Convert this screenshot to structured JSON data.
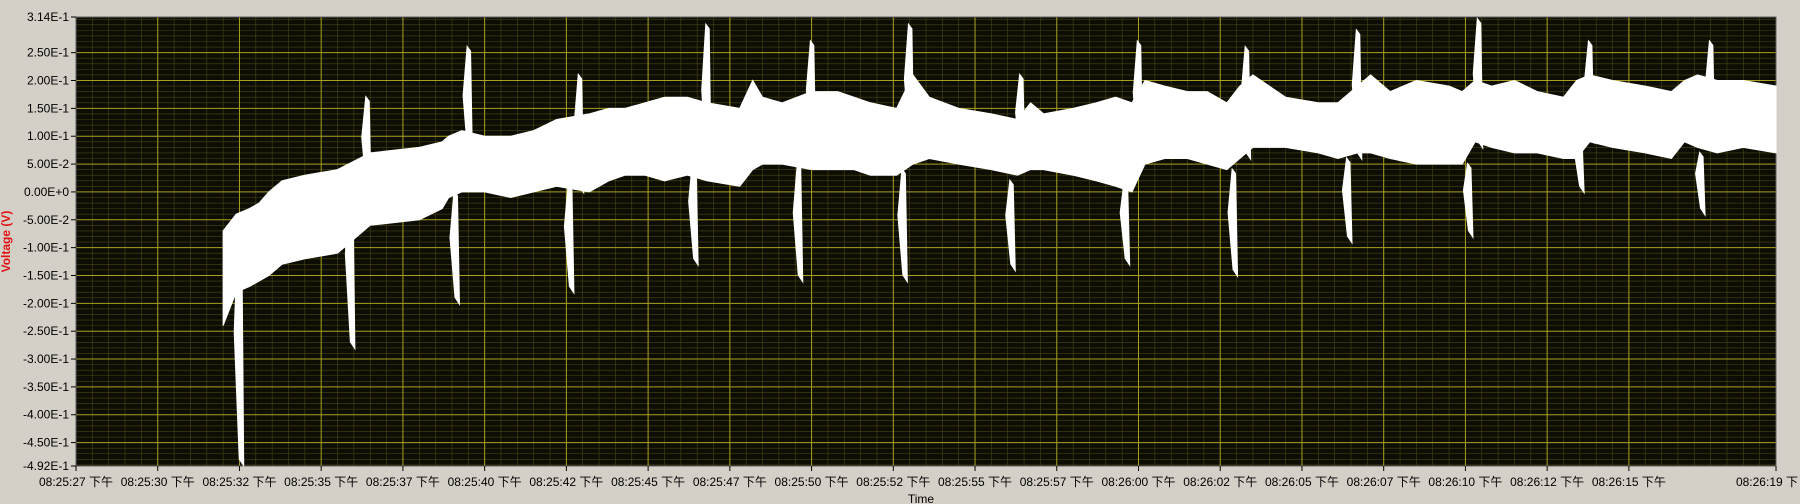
{
  "chart_data": {
    "type": "area",
    "title": "",
    "xlabel": "Time",
    "ylabel": "Voltage (V)",
    "ylim": [
      -0.492,
      0.314
    ],
    "yticks": [
      {
        "value": 0.314,
        "label": "3.14E-1"
      },
      {
        "value": 0.25,
        "label": "2.50E-1"
      },
      {
        "value": 0.2,
        "label": "2.00E-1"
      },
      {
        "value": 0.15,
        "label": "1.50E-1"
      },
      {
        "value": 0.1,
        "label": "1.00E-1"
      },
      {
        "value": 0.05,
        "label": "5.00E-2"
      },
      {
        "value": 0.0,
        "label": "0.00E+0"
      },
      {
        "value": -0.05,
        "label": "-5.00E-2"
      },
      {
        "value": -0.1,
        "label": "-1.00E-1"
      },
      {
        "value": -0.15,
        "label": "-1.50E-1"
      },
      {
        "value": -0.2,
        "label": "-2.00E-1"
      },
      {
        "value": -0.25,
        "label": "-2.50E-1"
      },
      {
        "value": -0.3,
        "label": "-3.00E-1"
      },
      {
        "value": -0.35,
        "label": "-3.50E-1"
      },
      {
        "value": -0.4,
        "label": "-4.00E-1"
      },
      {
        "value": -0.45,
        "label": "-4.50E-1"
      },
      {
        "value": -0.492,
        "label": "-4.92E-1"
      }
    ],
    "xlim": [
      0,
      52
    ],
    "xticks": [
      {
        "value": 0,
        "label": "08:25:27 下午"
      },
      {
        "value": 2.5,
        "label": "08:25:30 下午"
      },
      {
        "value": 5,
        "label": "08:25:32 下午"
      },
      {
        "value": 7.5,
        "label": "08:25:35 下午"
      },
      {
        "value": 10,
        "label": "08:25:37 下午"
      },
      {
        "value": 12.5,
        "label": "08:25:40 下午"
      },
      {
        "value": 15,
        "label": "08:25:42 下午"
      },
      {
        "value": 17.5,
        "label": "08:25:45 下午"
      },
      {
        "value": 20,
        "label": "08:25:47 下午"
      },
      {
        "value": 22.5,
        "label": "08:25:50 下午"
      },
      {
        "value": 25,
        "label": "08:25:52 下午"
      },
      {
        "value": 27.5,
        "label": "08:25:55 下午"
      },
      {
        "value": 30,
        "label": "08:25:57 下午"
      },
      {
        "value": 32.5,
        "label": "08:26:00 下午"
      },
      {
        "value": 35,
        "label": "08:26:02 下午"
      },
      {
        "value": 37.5,
        "label": "08:26:05 下午"
      },
      {
        "value": 40,
        "label": "08:26:07 下午"
      },
      {
        "value": 42.5,
        "label": "08:26:10 下午"
      },
      {
        "value": 45,
        "label": "08:26:12 下午"
      },
      {
        "value": 47.5,
        "label": "08:26:15 下午"
      },
      {
        "value": 52,
        "label": "08:26:19 下"
      }
    ],
    "grid": true,
    "colors": {
      "plot_bg": "#0d0d04",
      "major_grid": "#a8a020",
      "minor_grid": "#4a4614",
      "trace": "#ffffff",
      "frame_bg": "#d4d0c8",
      "ylabel_color": "#e01010"
    },
    "series": [
      {
        "band_x": [
          4.5,
          4.9,
          5.3,
          5.6,
          5.9,
          6.3,
          7,
          8,
          9,
          10.5,
          11.2,
          11.4,
          11.8,
          12.5,
          13.3,
          14,
          14.7,
          15.7,
          16.3,
          16.8,
          17.4,
          18,
          18.7,
          19.3,
          20.3,
          20.7,
          21,
          21.6,
          22.5,
          23.3,
          23.8,
          24.3,
          25.1,
          25.6,
          26.1,
          27,
          28,
          28.8,
          29.2,
          29.6,
          30.5,
          31.2,
          31.8,
          32.3,
          32.7,
          33.3,
          34,
          34.6,
          35.2,
          35.6,
          36,
          37,
          38,
          38.6,
          39.2,
          39.6,
          40.2,
          41,
          42,
          42.4,
          42.8,
          43.3,
          44,
          44.7,
          45.5,
          45.9,
          46.3,
          47,
          48,
          48.8,
          49.2,
          49.6,
          50.2,
          51,
          52
        ],
        "band_high": [
          -0.07,
          -0.04,
          -0.03,
          -0.02,
          0.0,
          0.02,
          0.03,
          0.04,
          0.07,
          0.08,
          0.09,
          0.1,
          0.11,
          0.1,
          0.1,
          0.11,
          0.13,
          0.14,
          0.15,
          0.15,
          0.16,
          0.17,
          0.17,
          0.16,
          0.15,
          0.2,
          0.17,
          0.16,
          0.18,
          0.18,
          0.17,
          0.16,
          0.15,
          0.21,
          0.17,
          0.15,
          0.14,
          0.13,
          0.16,
          0.14,
          0.15,
          0.16,
          0.17,
          0.16,
          0.2,
          0.19,
          0.18,
          0.18,
          0.16,
          0.19,
          0.21,
          0.17,
          0.16,
          0.16,
          0.19,
          0.21,
          0.18,
          0.2,
          0.19,
          0.18,
          0.2,
          0.19,
          0.2,
          0.18,
          0.17,
          0.2,
          0.21,
          0.2,
          0.19,
          0.18,
          0.2,
          0.21,
          0.2,
          0.2,
          0.19
        ],
        "band_low": [
          -0.24,
          -0.18,
          -0.17,
          -0.16,
          -0.15,
          -0.13,
          -0.12,
          -0.11,
          -0.06,
          -0.05,
          -0.03,
          -0.01,
          0.0,
          0.0,
          -0.01,
          0.0,
          0.01,
          0.0,
          0.02,
          0.03,
          0.03,
          0.02,
          0.03,
          0.02,
          0.01,
          0.04,
          0.05,
          0.05,
          0.04,
          0.04,
          0.04,
          0.03,
          0.03,
          0.05,
          0.06,
          0.05,
          0.04,
          0.03,
          0.04,
          0.04,
          0.03,
          0.02,
          0.01,
          0.0,
          0.05,
          0.06,
          0.06,
          0.05,
          0.04,
          0.06,
          0.08,
          0.08,
          0.07,
          0.06,
          0.07,
          0.07,
          0.06,
          0.05,
          0.05,
          0.05,
          0.09,
          0.08,
          0.07,
          0.07,
          0.06,
          0.06,
          0.09,
          0.08,
          0.07,
          0.06,
          0.09,
          0.08,
          0.07,
          0.08,
          0.07
        ],
        "spikes": [
          {
            "x": 5.0,
            "low": -0.49,
            "high": -0.05
          },
          {
            "x": 8.4,
            "low": -0.28,
            "high": 0.02
          },
          {
            "x": 8.9,
            "low": -0.01,
            "high": 0.17
          },
          {
            "x": 11.6,
            "low": -0.2,
            "high": 0.0
          },
          {
            "x": 12.0,
            "low": 0.05,
            "high": 0.26
          },
          {
            "x": 15.1,
            "low": -0.18,
            "high": 0.02
          },
          {
            "x": 15.4,
            "low": 0.0,
            "high": 0.21
          },
          {
            "x": 18.9,
            "low": -0.13,
            "high": 0.06
          },
          {
            "x": 19.3,
            "low": 0.03,
            "high": 0.3
          },
          {
            "x": 22.1,
            "low": -0.16,
            "high": 0.05
          },
          {
            "x": 22.5,
            "low": 0.06,
            "high": 0.27
          },
          {
            "x": 25.3,
            "low": -0.16,
            "high": 0.04
          },
          {
            "x": 25.5,
            "low": 0.07,
            "high": 0.3
          },
          {
            "x": 28.6,
            "low": -0.14,
            "high": 0.02
          },
          {
            "x": 28.9,
            "low": 0.04,
            "high": 0.21
          },
          {
            "x": 32.1,
            "low": -0.13,
            "high": 0.02
          },
          {
            "x": 32.5,
            "low": 0.05,
            "high": 0.27
          },
          {
            "x": 35.4,
            "low": -0.15,
            "high": 0.04
          },
          {
            "x": 35.8,
            "low": 0.06,
            "high": 0.26
          },
          {
            "x": 38.9,
            "low": -0.09,
            "high": 0.06
          },
          {
            "x": 39.2,
            "low": 0.06,
            "high": 0.29
          },
          {
            "x": 42.6,
            "low": -0.08,
            "high": 0.05
          },
          {
            "x": 42.9,
            "low": 0.08,
            "high": 0.31
          },
          {
            "x": 46.0,
            "low": 0.0,
            "high": 0.1
          },
          {
            "x": 46.3,
            "low": 0.09,
            "high": 0.27
          },
          {
            "x": 49.7,
            "low": -0.04,
            "high": 0.07
          },
          {
            "x": 50.0,
            "low": 0.08,
            "high": 0.27
          }
        ]
      }
    ]
  }
}
